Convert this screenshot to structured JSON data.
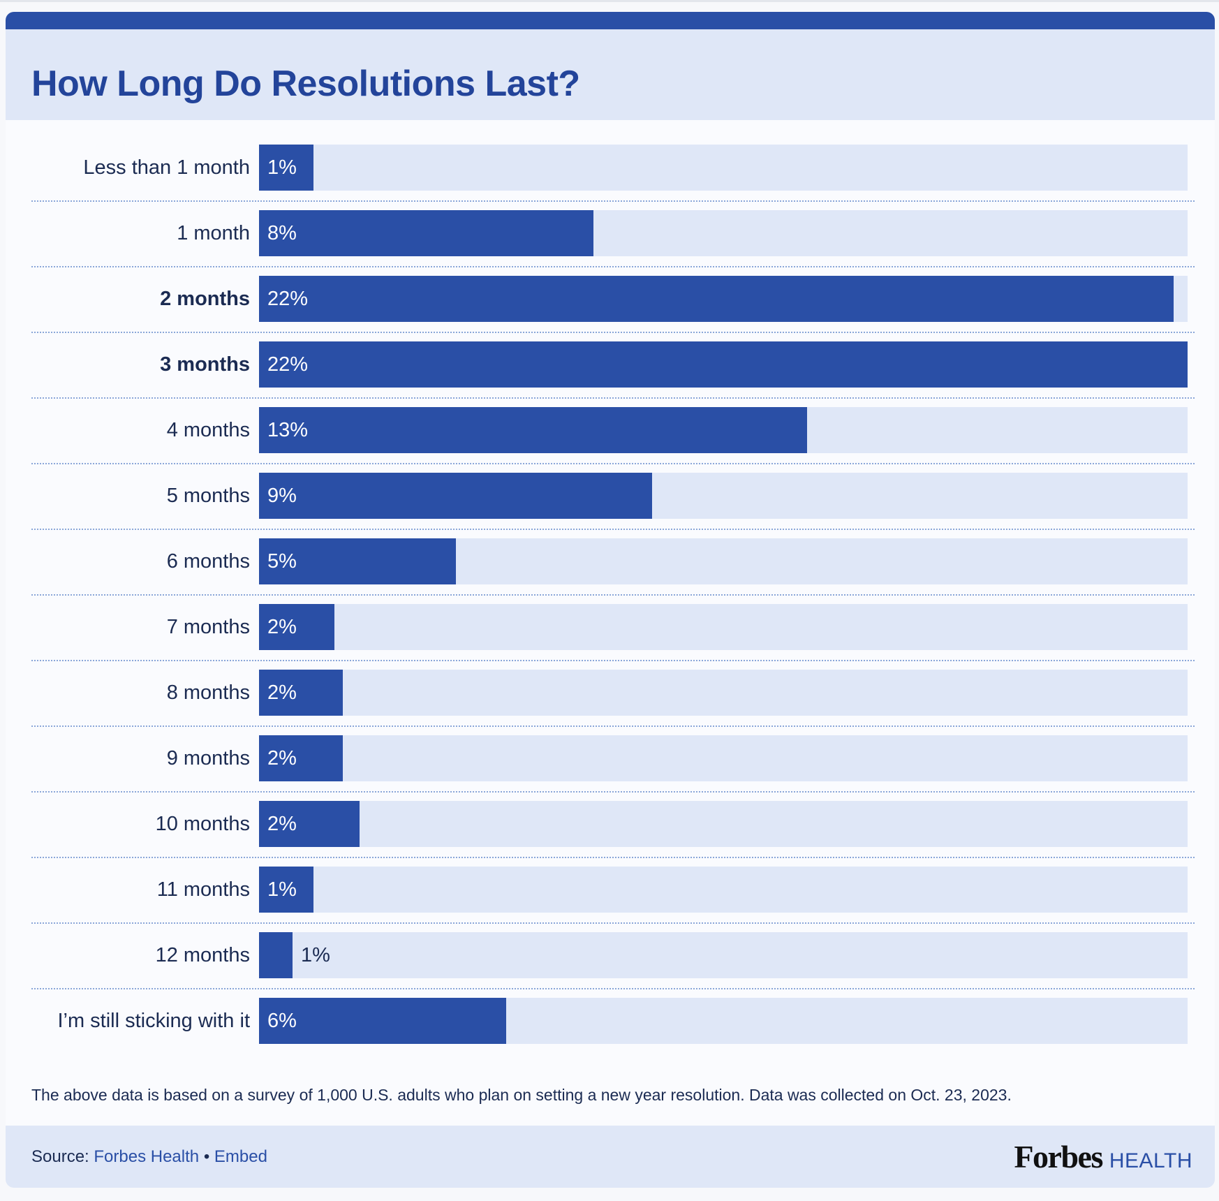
{
  "title": "How Long Do Resolutions Last?",
  "chart_data": {
    "type": "bar",
    "orientation": "horizontal",
    "title": "How Long Do Resolutions Last?",
    "unit": "%",
    "categories": [
      "Less than 1 month",
      "1 month",
      "2 months",
      "3 months",
      "4 months",
      "5 months",
      "6 months",
      "7 months",
      "8 months",
      "9 months",
      "10 months",
      "11 months",
      "12 months",
      "I’m still sticking with it"
    ],
    "values": [
      1,
      8,
      22,
      22,
      13,
      9,
      5,
      2,
      2,
      2,
      2,
      1,
      1,
      6
    ],
    "value_labels": [
      "1%",
      "8%",
      "22%",
      "22%",
      "13%",
      "9%",
      "5%",
      "2%",
      "2%",
      "2%",
      "2%",
      "1%",
      "1%",
      "6%"
    ],
    "bar_fill_fraction": [
      0.059,
      0.36,
      0.985,
      1.0,
      0.59,
      0.423,
      0.212,
      0.081,
      0.09,
      0.09,
      0.108,
      0.059,
      0.036,
      0.266
    ],
    "bold_categories": [
      "2 months",
      "3 months"
    ],
    "colors": {
      "bar": "#2a4fa6",
      "track": "#dfe7f7",
      "title": "#23449a",
      "text": "#1b2b52"
    }
  },
  "note": "The above data is based on a survey of 1,000 U.S. adults who plan on setting a new year resolution. Data was collected on Oct. 23, 2023.",
  "footer": {
    "source_label": "Source:",
    "source_link": "Forbes Health",
    "separator": "•",
    "embed_link": "Embed",
    "logo_main": "Forbes",
    "logo_sub": "HEALTH"
  }
}
